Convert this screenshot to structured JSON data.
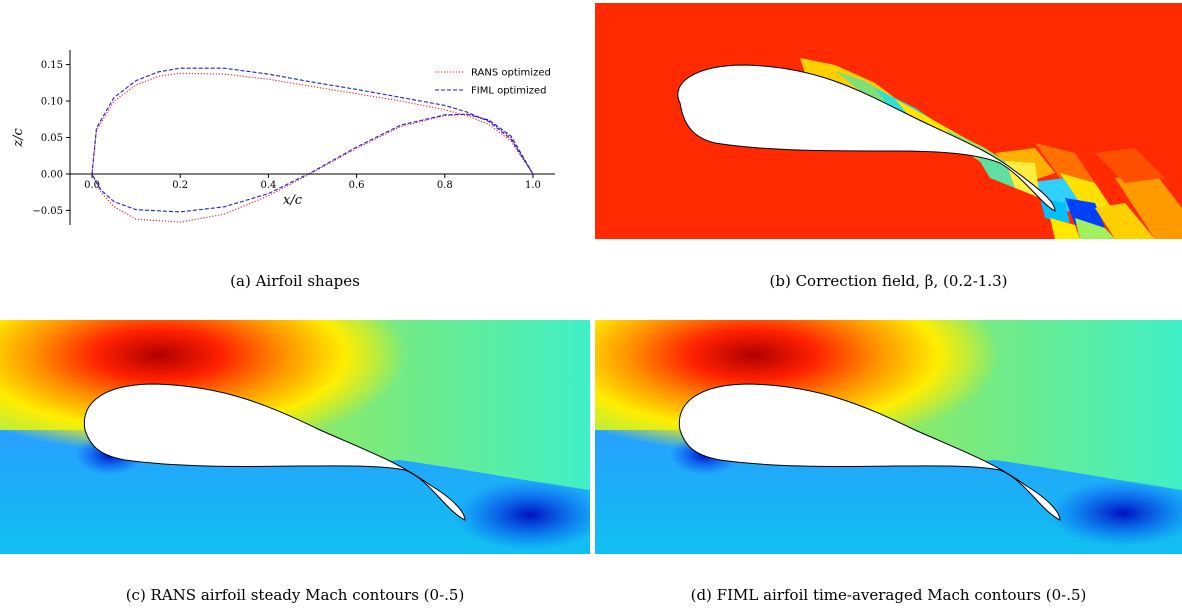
{
  "chart_data": [
    {
      "type": "line",
      "panel": "a",
      "caption": "(a)  Airfoil shapes",
      "xlabel": "x/c",
      "ylabel": "z/c",
      "xlim": [
        -0.05,
        1.05
      ],
      "ylim": [
        -0.07,
        0.17
      ],
      "x_ticks": [
        0.0,
        0.2,
        0.4,
        0.6,
        0.8,
        1.0
      ],
      "x_tick_labels": [
        "0.0",
        "0.2",
        "0.4",
        "0.6",
        "0.8",
        "1.0"
      ],
      "y_ticks": [
        -0.05,
        0.0,
        0.05,
        0.1,
        0.15
      ],
      "y_tick_labels": [
        "−0.05",
        "0.00",
        "0.05",
        "0.10",
        "0.15"
      ],
      "grid": false,
      "legend_position": "top-right",
      "series": [
        {
          "name": "RANS optimized",
          "color": "#e41a1c",
          "style": "dotted",
          "x": [
            1.0,
            0.95,
            0.9,
            0.85,
            0.8,
            0.7,
            0.6,
            0.5,
            0.4,
            0.3,
            0.2,
            0.1,
            0.05,
            0.02,
            0.0,
            0.01,
            0.05,
            0.1,
            0.15,
            0.2,
            0.3,
            0.4,
            0.5,
            0.6,
            0.7,
            0.8,
            0.85,
            0.9,
            0.95,
            1.0
          ],
          "y": [
            0.0,
            0.05,
            0.073,
            0.082,
            0.08,
            0.065,
            0.035,
            0.002,
            -0.03,
            -0.055,
            -0.066,
            -0.062,
            -0.045,
            -0.025,
            0.0,
            0.06,
            0.1,
            0.122,
            0.134,
            0.138,
            0.137,
            0.13,
            0.12,
            0.11,
            0.1,
            0.088,
            0.08,
            0.068,
            0.045,
            0.0
          ]
        },
        {
          "name": "FIML optimized",
          "color": "#1f1fd6",
          "style": "dashed",
          "x": [
            1.0,
            0.95,
            0.9,
            0.85,
            0.8,
            0.7,
            0.6,
            0.5,
            0.4,
            0.3,
            0.2,
            0.1,
            0.05,
            0.02,
            0.0,
            0.01,
            0.05,
            0.1,
            0.15,
            0.2,
            0.3,
            0.4,
            0.5,
            0.6,
            0.7,
            0.8,
            0.85,
            0.9,
            0.95,
            1.0
          ],
          "y": [
            0.0,
            0.052,
            0.074,
            0.082,
            0.081,
            0.067,
            0.037,
            0.003,
            -0.027,
            -0.045,
            -0.052,
            -0.049,
            -0.038,
            -0.022,
            0.0,
            0.063,
            0.105,
            0.128,
            0.14,
            0.145,
            0.145,
            0.137,
            0.126,
            0.116,
            0.105,
            0.094,
            0.085,
            0.072,
            0.048,
            0.0
          ]
        }
      ]
    },
    {
      "type": "heatmap",
      "panel": "b",
      "caption": "(b)  Correction field, β, (0.2-1.3)",
      "range": [
        0.2,
        1.3
      ],
      "background_color": "#ff2a00"
    },
    {
      "type": "heatmap",
      "panel": "c",
      "caption": "(c)  RANS airfoil steady Mach contours (0-.5)",
      "range": [
        0,
        0.5
      ]
    },
    {
      "type": "heatmap",
      "panel": "d",
      "caption": "(d)  FIML airfoil time-averaged Mach contours (0-.5)",
      "range": [
        0,
        0.5
      ]
    }
  ],
  "colors": {
    "jet_red": "#d40000",
    "jet_orange": "#ff7a00",
    "jet_yellow": "#ffee00",
    "jet_green": "#a6e84a",
    "jet_cyan": "#3ff0c0",
    "jet_blue": "#0064ff",
    "jet_dark_blue": "#0010c8"
  }
}
